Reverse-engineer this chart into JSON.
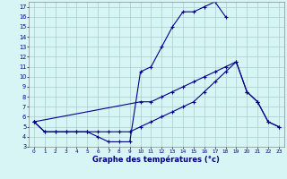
{
  "xlabel": "Graphe des températures (°c)",
  "background_color": "#d8f5f5",
  "line_color": "#00008b",
  "grid_color": "#aacccc",
  "xlim": [
    -0.5,
    23.5
  ],
  "ylim": [
    3,
    17.5
  ],
  "yticks": [
    3,
    4,
    5,
    6,
    7,
    8,
    9,
    10,
    11,
    12,
    13,
    14,
    15,
    16,
    17
  ],
  "xticks": [
    0,
    1,
    2,
    3,
    4,
    5,
    6,
    7,
    8,
    9,
    10,
    11,
    12,
    13,
    14,
    15,
    16,
    17,
    18,
    19,
    20,
    21,
    22,
    23
  ],
  "series": [
    {
      "x": [
        0,
        1,
        2,
        3,
        4,
        5,
        6,
        7,
        8,
        9,
        10,
        11,
        12,
        13,
        14,
        15,
        16,
        17,
        18
      ],
      "y": [
        5.5,
        4.5,
        4.5,
        4.5,
        4.5,
        4.5,
        4.0,
        3.5,
        3.5,
        3.5,
        10.5,
        11.0,
        13.0,
        15.0,
        16.5,
        16.5,
        17.0,
        17.5,
        16.0
      ]
    },
    {
      "x": [
        0,
        1,
        2,
        3,
        4,
        5,
        6,
        7,
        8,
        9,
        10,
        11,
        12,
        13,
        14,
        15,
        16,
        17,
        18,
        19,
        20,
        21,
        22,
        23
      ],
      "y": [
        5.5,
        4.5,
        4.5,
        4.5,
        4.5,
        4.5,
        4.5,
        4.5,
        4.5,
        4.5,
        5.0,
        5.5,
        6.0,
        6.5,
        7.0,
        7.5,
        8.5,
        9.5,
        10.5,
        11.5,
        8.5,
        7.5,
        5.5,
        5.0
      ]
    },
    {
      "x": [
        0,
        10,
        11,
        12,
        13,
        14,
        15,
        16,
        17,
        18,
        19,
        20,
        21,
        22,
        23
      ],
      "y": [
        5.5,
        7.5,
        7.5,
        8.0,
        8.5,
        9.0,
        9.5,
        10.0,
        10.5,
        11.0,
        11.5,
        8.5,
        7.5,
        5.5,
        5.0
      ]
    }
  ]
}
